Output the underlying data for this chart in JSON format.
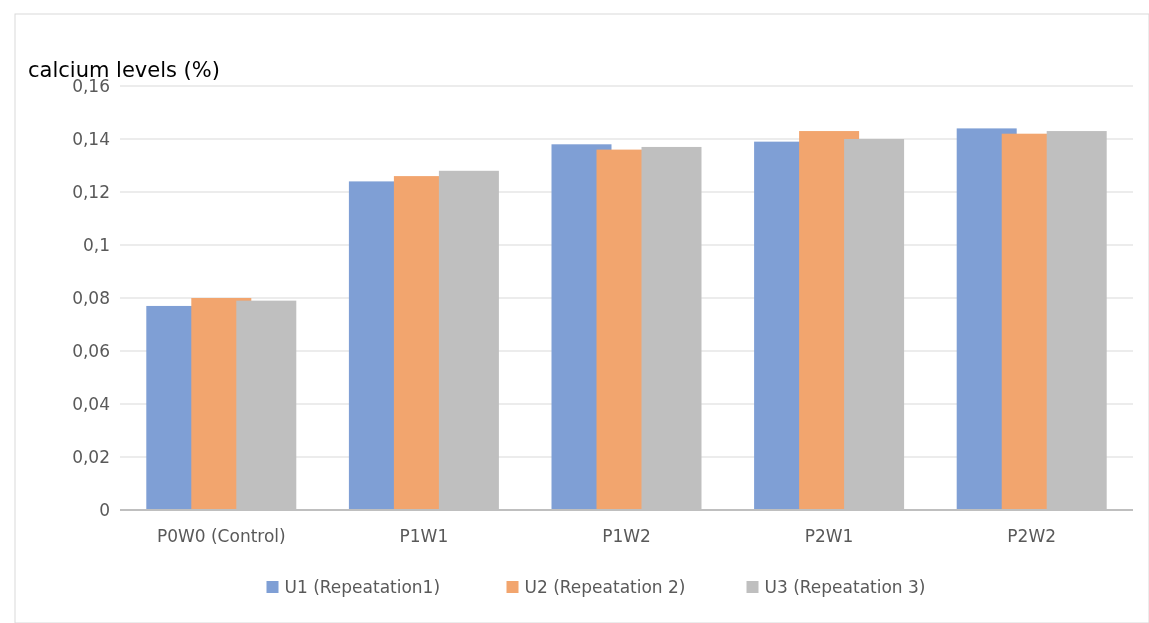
{
  "chart_data": {
    "type": "bar",
    "ylabel": "calcium levels (%)",
    "categories": [
      "P0W0 (Control)",
      "P1W1",
      "P1W2",
      "P2W1",
      "P2W2"
    ],
    "series": [
      {
        "name": "U1 (Repeatation1)",
        "color": "#7f9fd5",
        "values": [
          0.077,
          0.124,
          0.138,
          0.139,
          0.144
        ]
      },
      {
        "name": "U2 (Repeatation 2)",
        "color": "#f2a56e",
        "values": [
          0.08,
          0.126,
          0.136,
          0.143,
          0.142
        ]
      },
      {
        "name": "U3 (Repeatation 3)",
        "color": "#bfbfbf",
        "values": [
          0.079,
          0.128,
          0.137,
          0.14,
          0.143
        ]
      }
    ],
    "ylim": [
      0,
      0.16
    ],
    "yticks": [
      {
        "value": 0,
        "label": "0"
      },
      {
        "value": 0.02,
        "label": "0,02"
      },
      {
        "value": 0.04,
        "label": "0,04"
      },
      {
        "value": 0.06,
        "label": "0,06"
      },
      {
        "value": 0.08,
        "label": "0,08"
      },
      {
        "value": 0.1,
        "label": "0,1"
      },
      {
        "value": 0.12,
        "label": "0,12"
      },
      {
        "value": 0.14,
        "label": "0,14"
      },
      {
        "value": 0.16,
        "label": "0,16"
      }
    ],
    "grid": "y",
    "legend": "bottom"
  }
}
